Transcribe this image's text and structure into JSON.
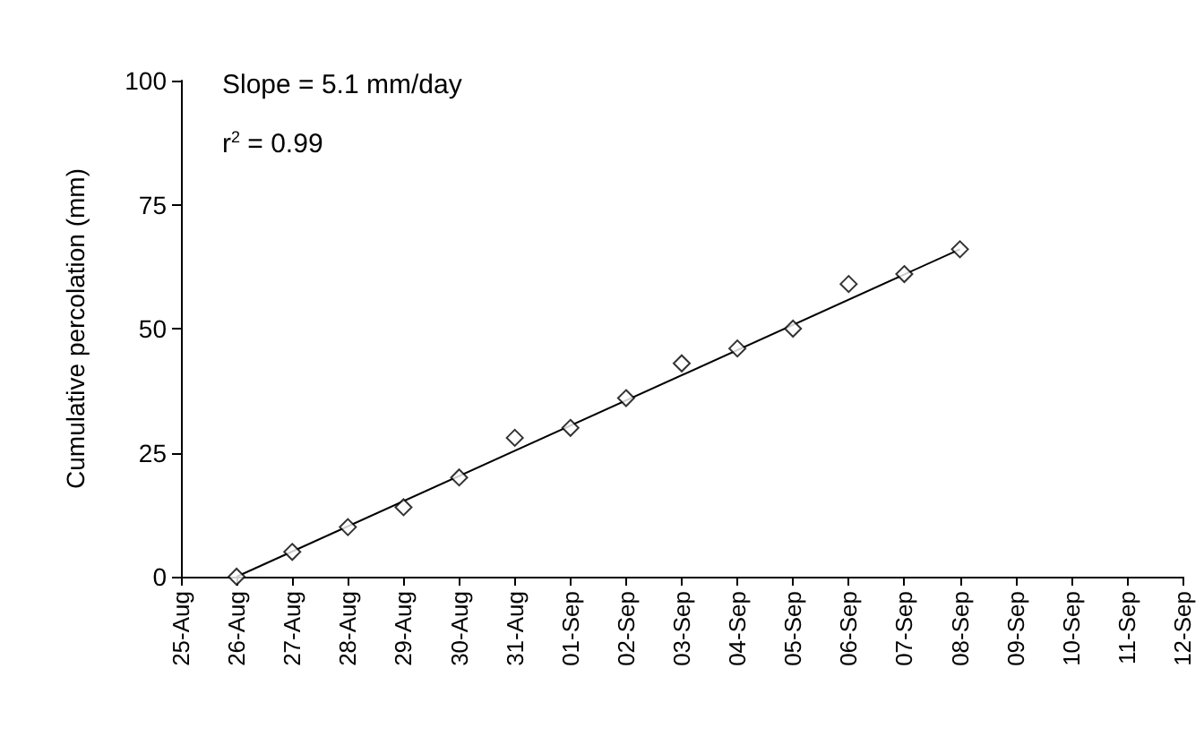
{
  "chart_data": {
    "type": "scatter",
    "ylabel": "Cumulative percolation (mm)",
    "annotations": [
      "Slope = 5.1 mm/day",
      "r$^{2}$ = 0.99"
    ],
    "x": [
      "--08-26",
      "--08-27",
      "--08-28",
      "--08-29",
      "--08-30",
      "--08-31",
      "--09-01",
      "--09-02",
      "--09-03",
      "--09-04",
      "--09-05",
      "--09-06",
      "--09-07",
      "--09-08"
    ],
    "series": [
      {
        "color": "#000000",
        "marker": "diamond",
        "values": [
          0,
          5,
          10,
          14,
          20,
          28,
          30,
          36,
          43,
          46,
          50,
          59,
          61,
          66
        ]
      },
      {
        "type": "line",
        "color": "#000000",
        "marker": "none",
        "line_style": "solid",
        "x": [
          "--08-26",
          "--09-08"
        ],
        "values": [
          0,
          66
        ]
      }
    ],
    "xlim": [
      "--08-25",
      "--09-12"
    ],
    "xticks": [
      {
        "value": "--08-25",
        "label": "25-Aug"
      },
      {
        "value": "--08-26",
        "label": "26-Aug"
      },
      {
        "value": "--08-27",
        "label": "27-Aug"
      },
      {
        "value": "--08-28",
        "label": "28-Aug"
      },
      {
        "value": "--08-29",
        "label": "29-Aug"
      },
      {
        "value": "--08-30",
        "label": "30-Aug"
      },
      {
        "value": "--08-31",
        "label": "31-Aug"
      },
      {
        "value": "--09-01",
        "label": "01-Sep"
      },
      {
        "value": "--09-02",
        "label": "02-Sep"
      },
      {
        "value": "--09-03",
        "label": "03-Sep"
      },
      {
        "value": "--09-04",
        "label": "04-Sep"
      },
      {
        "value": "--09-05",
        "label": "05-Sep"
      },
      {
        "value": "--09-06",
        "label": "06-Sep"
      },
      {
        "value": "--09-07",
        "label": "07-Sep"
      },
      {
        "value": "--09-08",
        "label": "08-Sep"
      },
      {
        "value": "--09-09",
        "label": "09-Sep"
      },
      {
        "value": "--09-10",
        "label": "10-Sep"
      },
      {
        "value": "--09-11",
        "label": "11-Sep"
      },
      {
        "value": "--09-12",
        "label": "12-Sep"
      }
    ],
    "ylim": [
      0,
      100
    ],
    "yticks": [
      0,
      25,
      50,
      75,
      100
    ],
    "grid": false
  }
}
